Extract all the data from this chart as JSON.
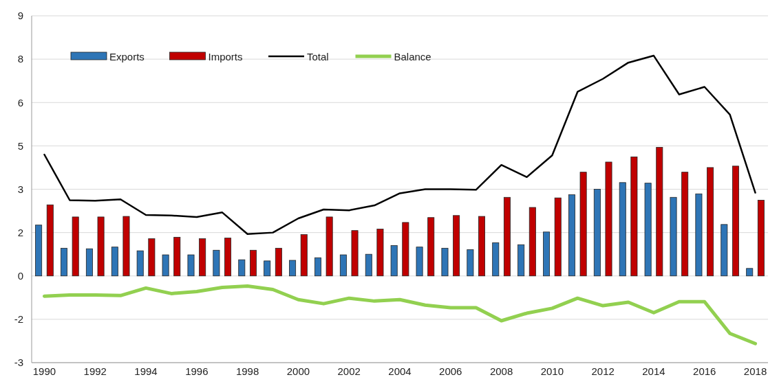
{
  "chart_data": {
    "type": "bar",
    "categories": [
      "1990",
      null,
      "1992",
      null,
      "1994",
      null,
      "1996",
      null,
      "1998",
      null,
      "2000",
      null,
      "2002",
      null,
      "2004",
      null,
      "2006",
      null,
      "2008",
      null,
      "2010",
      null,
      "2012",
      null,
      "2014",
      null,
      "2016",
      null,
      "2018"
    ],
    "series": [
      {
        "name": "Exports",
        "color": "#2e75b6",
        "values": [
          1.76,
          0.96,
          0.94,
          1.0,
          0.87,
          0.73,
          0.73,
          0.89,
          0.56,
          0.52,
          0.54,
          0.63,
          0.73,
          0.75,
          1.05,
          1.0,
          0.96,
          0.91,
          1.15,
          1.08,
          1.52,
          2.81,
          3.0,
          3.23,
          3.21,
          2.72,
          2.84,
          1.78,
          0.26
        ]
      },
      {
        "name": "Imports",
        "color": "#c00000",
        "values": [
          2.46,
          2.04,
          2.04,
          2.06,
          1.29,
          1.34,
          1.29,
          1.31,
          0.89,
          0.96,
          1.43,
          2.04,
          1.57,
          1.62,
          1.85,
          2.02,
          2.09,
          2.06,
          2.72,
          2.37,
          2.7,
          3.59,
          3.94,
          4.12,
          4.45,
          3.59,
          3.75,
          3.8,
          2.62
        ]
      },
      {
        "name": "Total",
        "type": "line",
        "color": "#000000",
        "values": [
          4.2,
          2.62,
          2.6,
          2.65,
          2.11,
          2.09,
          2.04,
          2.2,
          1.45,
          1.5,
          1.99,
          2.3,
          2.27,
          2.44,
          2.86,
          3.0,
          3.0,
          2.98,
          3.84,
          3.42,
          4.17,
          6.37,
          6.82,
          7.38,
          7.62,
          6.28,
          6.54,
          5.58,
          2.88
        ]
      },
      {
        "name": "Balance",
        "type": "line",
        "color": "#92d050",
        "values": [
          -0.7,
          -0.66,
          -0.66,
          -0.68,
          -0.42,
          -0.61,
          -0.54,
          -0.4,
          -0.35,
          -0.47,
          -0.82,
          -0.96,
          -0.77,
          -0.87,
          -0.82,
          -1.01,
          -1.1,
          -1.1,
          -1.55,
          -1.29,
          -1.12,
          -0.77,
          -1.03,
          -0.91,
          -1.27,
          -0.89,
          -0.89,
          -1.99,
          -2.34
        ]
      }
    ],
    "ylim": [
      -3,
      9
    ],
    "yticks": [
      -3,
      {
        "value": -1.5,
        "label": "-2"
      },
      0,
      {
        "value": 1.5,
        "label": "2"
      },
      3,
      {
        "value": 4.5,
        "label": "5"
      },
      6,
      {
        "value": 7.5,
        "label": "8"
      },
      9
    ],
    "grid": "y",
    "legend": "top left"
  }
}
